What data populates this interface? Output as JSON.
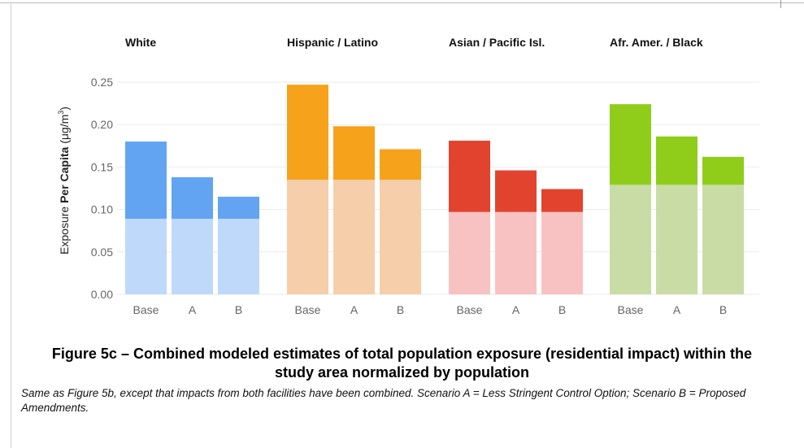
{
  "chart_data": {
    "type": "bar",
    "ylabel_parts": [
      "Exposure ",
      "Per Capita",
      " (μg/m",
      "3",
      ")"
    ],
    "ylim": [
      0,
      0.25
    ],
    "yticks": [
      "0.00",
      "0.05",
      "0.10",
      "0.15",
      "0.20",
      "0.25"
    ],
    "ytick_values": [
      0,
      0.05,
      0.1,
      0.15,
      0.2,
      0.25
    ],
    "grid": true,
    "categories": [
      "Base",
      "A",
      "B"
    ],
    "panels": [
      {
        "title": "White",
        "colors": {
          "dark": "#62a4f2",
          "light": "#bfd9fb"
        },
        "base_component": [
          0.089,
          0.089,
          0.089
        ],
        "totals": [
          0.18,
          0.138,
          0.115
        ]
      },
      {
        "title": "Hispanic / Latino",
        "colors": {
          "dark": "#f7a21b",
          "light": "#f6ceaa"
        },
        "base_component": [
          0.135,
          0.135,
          0.135
        ],
        "totals": [
          0.247,
          0.198,
          0.171
        ]
      },
      {
        "title": "Asian / Pacific Isl.",
        "colors": {
          "dark": "#e2432f",
          "light": "#f9c2c2"
        },
        "base_component": [
          0.097,
          0.097,
          0.097
        ],
        "totals": [
          0.181,
          0.146,
          0.124
        ]
      },
      {
        "title": "Afr. Amer. / Black",
        "colors": {
          "dark": "#8fcd1a",
          "light": "#c9dca6"
        },
        "base_component": [
          0.129,
          0.129,
          0.129
        ],
        "totals": [
          0.224,
          0.186,
          0.162
        ]
      }
    ]
  },
  "figure": {
    "title": "Figure 5c – Combined modeled estimates of total population exposure (residential impact) within the study area normalized by population",
    "caption": "Same as Figure 5b, except that impacts from both facilities have been combined. Scenario A = Less Stringent Control Option; Scenario B = Proposed Amendments."
  }
}
